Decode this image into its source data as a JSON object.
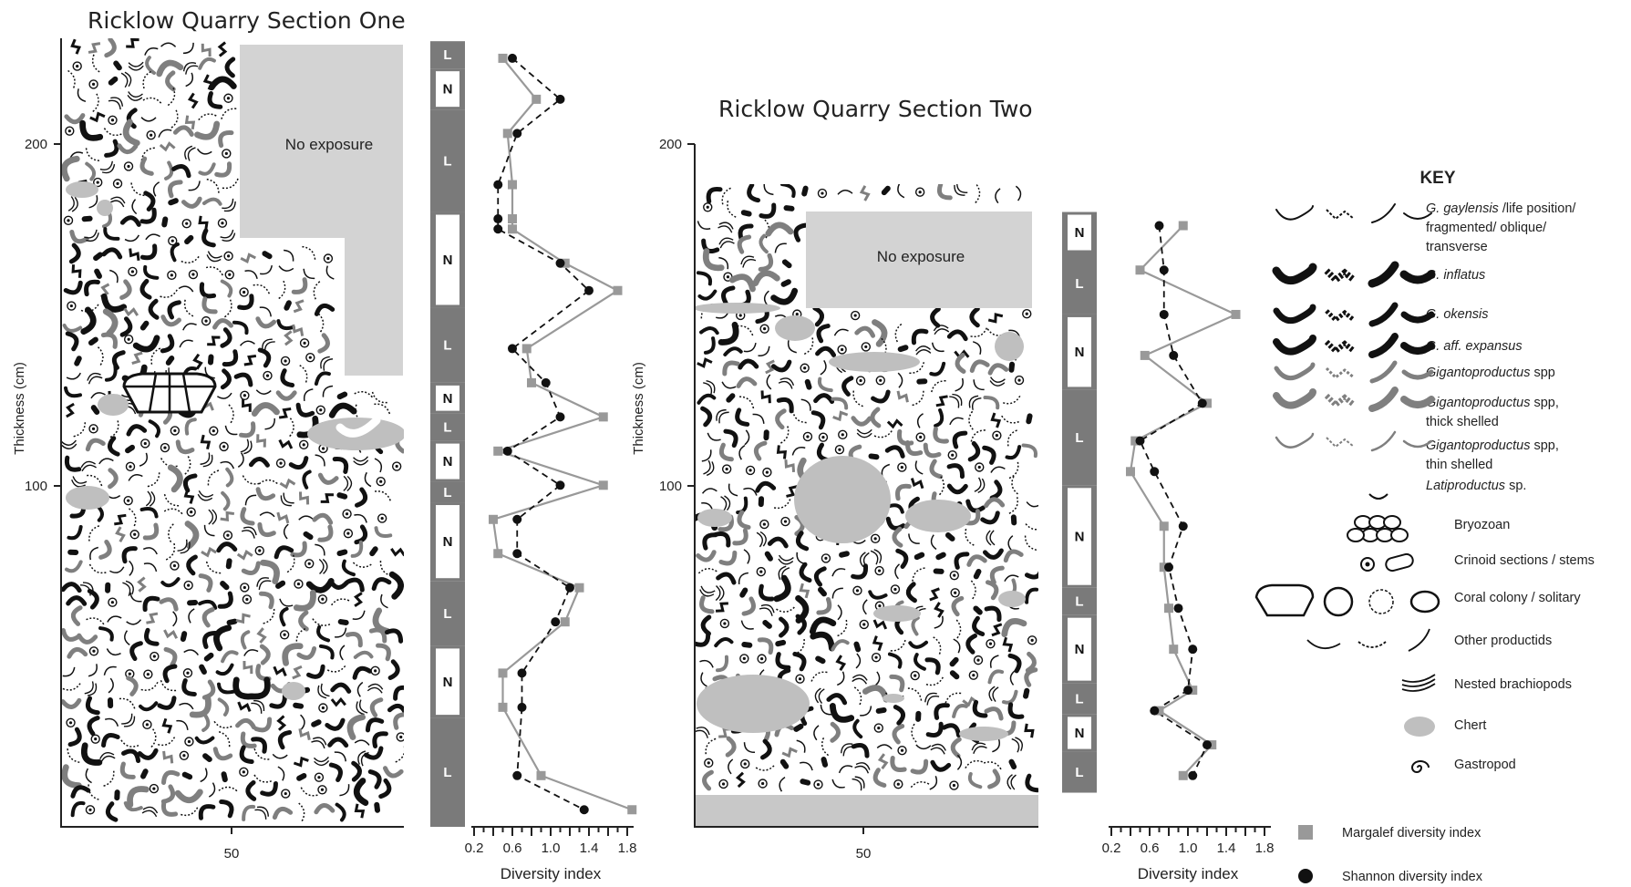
{
  "colors": {
    "dark_bar": "#7a7a7a",
    "grey_fossil": "#7f7f7f",
    "chert": "#bfbfbf",
    "no_exposure": "#d3d3d3",
    "margalef": "#999999",
    "shannon": "#111111"
  },
  "section_one": {
    "title": "Ricklow Quarry Section One",
    "y_axis": {
      "label": "Thickness (cm)",
      "ticks": [
        "200",
        "100"
      ]
    },
    "x_axis": {
      "ticks": [
        "50"
      ]
    },
    "no_exposure": "No exposure"
  },
  "section_two": {
    "title": "Ricklow Quarry Section Two",
    "y_axis": {
      "label": "Thickness (cm)",
      "ticks": [
        "200",
        "100"
      ]
    },
    "x_axis": {
      "ticks": [
        "50"
      ]
    },
    "no_exposure": "No exposure"
  },
  "lith_one": [
    {
      "code": "L",
      "from": 230,
      "to": 222
    },
    {
      "code": "N",
      "from": 222,
      "to": 210
    },
    {
      "code": "L",
      "from": 210,
      "to": 180
    },
    {
      "code": "N",
      "from": 180,
      "to": 152
    },
    {
      "code": "L",
      "from": 152,
      "to": 130
    },
    {
      "code": "N",
      "from": 130,
      "to": 121
    },
    {
      "code": "L",
      "from": 121,
      "to": 113
    },
    {
      "code": "N",
      "from": 113,
      "to": 101
    },
    {
      "code": "L",
      "from": 101,
      "to": 95
    },
    {
      "code": "N",
      "from": 95,
      "to": 72
    },
    {
      "code": "L",
      "from": 72,
      "to": 53
    },
    {
      "code": "N",
      "from": 53,
      "to": 32
    },
    {
      "code": "L",
      "from": 32,
      "to": 0
    }
  ],
  "lith_two": [
    {
      "code": "N",
      "from": 180,
      "to": 168
    },
    {
      "code": "L",
      "from": 168,
      "to": 150
    },
    {
      "code": "N",
      "from": 150,
      "to": 128
    },
    {
      "code": "L",
      "from": 128,
      "to": 100
    },
    {
      "code": "N",
      "from": 100,
      "to": 70
    },
    {
      "code": "L",
      "from": 70,
      "to": 62
    },
    {
      "code": "N",
      "from": 62,
      "to": 42
    },
    {
      "code": "L",
      "from": 42,
      "to": 33
    },
    {
      "code": "N",
      "from": 33,
      "to": 22
    },
    {
      "code": "L",
      "from": 22,
      "to": 10
    }
  ],
  "diversity_one": {
    "xlabel": "Diversity index",
    "ticks": [
      "0.2",
      "0.6",
      "1.0",
      "1.4",
      "1.8"
    ],
    "thickness": [
      225,
      213,
      203,
      188,
      178,
      175,
      165,
      157,
      140,
      130,
      120,
      110,
      100,
      90,
      80,
      70,
      60,
      45,
      35,
      15,
      5
    ],
    "margalef": [
      0.5,
      0.85,
      0.55,
      0.6,
      0.6,
      0.6,
      1.15,
      1.7,
      0.75,
      0.8,
      1.55,
      0.45,
      1.55,
      0.4,
      0.45,
      1.3,
      1.15,
      0.5,
      0.5,
      0.9,
      1.85
    ],
    "shannon": [
      0.6,
      1.1,
      0.65,
      0.45,
      0.45,
      0.45,
      1.1,
      1.4,
      0.6,
      0.95,
      1.1,
      0.55,
      1.1,
      0.65,
      0.65,
      1.2,
      1.05,
      0.7,
      0.7,
      0.65,
      1.35
    ]
  },
  "diversity_two": {
    "xlabel": "Diversity index",
    "ticks": [
      "0.2",
      "0.6",
      "1.0",
      "1.4",
      "1.8"
    ],
    "thickness": [
      176,
      163,
      150,
      138,
      124,
      113,
      104,
      88,
      76,
      64,
      52,
      40,
      34,
      24,
      15
    ],
    "margalef": [
      0.95,
      0.5,
      1.5,
      0.55,
      1.2,
      0.45,
      0.4,
      0.75,
      0.75,
      0.8,
      0.85,
      1.05,
      0.7,
      1.25,
      0.95
    ],
    "shannon": [
      0.7,
      0.75,
      0.75,
      0.85,
      1.15,
      0.5,
      0.65,
      0.95,
      0.8,
      0.9,
      1.05,
      1.0,
      0.65,
      1.2,
      1.05
    ]
  },
  "key": {
    "title": "KEY",
    "items": [
      {
        "lines": [
          [
            "G. gaylensis",
            " /life position/"
          ],
          [
            "",
            "fragmented/ oblique/"
          ],
          [
            "",
            "transverse"
          ]
        ],
        "icon": "gaylensis-icon"
      },
      {
        "lines": [
          [
            "G. inflatus",
            ""
          ]
        ],
        "icon": "inflatus-icon"
      },
      {
        "lines": [
          [
            "G. okensis",
            ""
          ]
        ],
        "icon": "okensis-icon"
      },
      {
        "lines": [
          [
            "G. aff. expansus",
            ""
          ]
        ],
        "icon": "expansus-icon"
      },
      {
        "lines": [
          [
            "Gigantoproductus",
            " spp"
          ]
        ],
        "icon": "gigantoproductus-icon"
      },
      {
        "lines": [
          [
            "Gigantoproductus",
            " spp,"
          ],
          [
            "",
            "thick shelled"
          ]
        ],
        "icon": "thick-shelled-icon"
      },
      {
        "lines": [
          [
            "Gigantoproductus",
            " spp,"
          ],
          [
            "",
            "thin shelled"
          ]
        ],
        "icon": "thin-shelled-icon"
      },
      {
        "lines": [
          [
            "Latiproductus",
            " sp."
          ]
        ],
        "icon": "latiproductus-icon"
      },
      {
        "lines": [
          [
            "",
            "Bryozoan"
          ]
        ],
        "icon": "bryozoan-icon"
      },
      {
        "lines": [
          [
            "",
            "Crinoid sections / stems"
          ]
        ],
        "icon": "crinoid-icon"
      },
      {
        "lines": [
          [
            "",
            "Coral colony / solitary"
          ]
        ],
        "icon": "coral-icon"
      },
      {
        "lines": [
          [
            "",
            "Other productids"
          ]
        ],
        "icon": "other-productids-icon"
      },
      {
        "lines": [
          [
            "",
            "Nested brachiopods"
          ]
        ],
        "icon": "nested-brachiopods-icon"
      },
      {
        "lines": [
          [
            "",
            "Chert"
          ]
        ],
        "icon": "chert-icon"
      },
      {
        "lines": [
          [
            "",
            "Gastropod"
          ]
        ],
        "icon": "gastropod-icon"
      }
    ],
    "legend": [
      {
        "label": "Margalef diversity index",
        "marker": "square"
      },
      {
        "label": "Shannon diversity index",
        "marker": "circle"
      }
    ]
  }
}
